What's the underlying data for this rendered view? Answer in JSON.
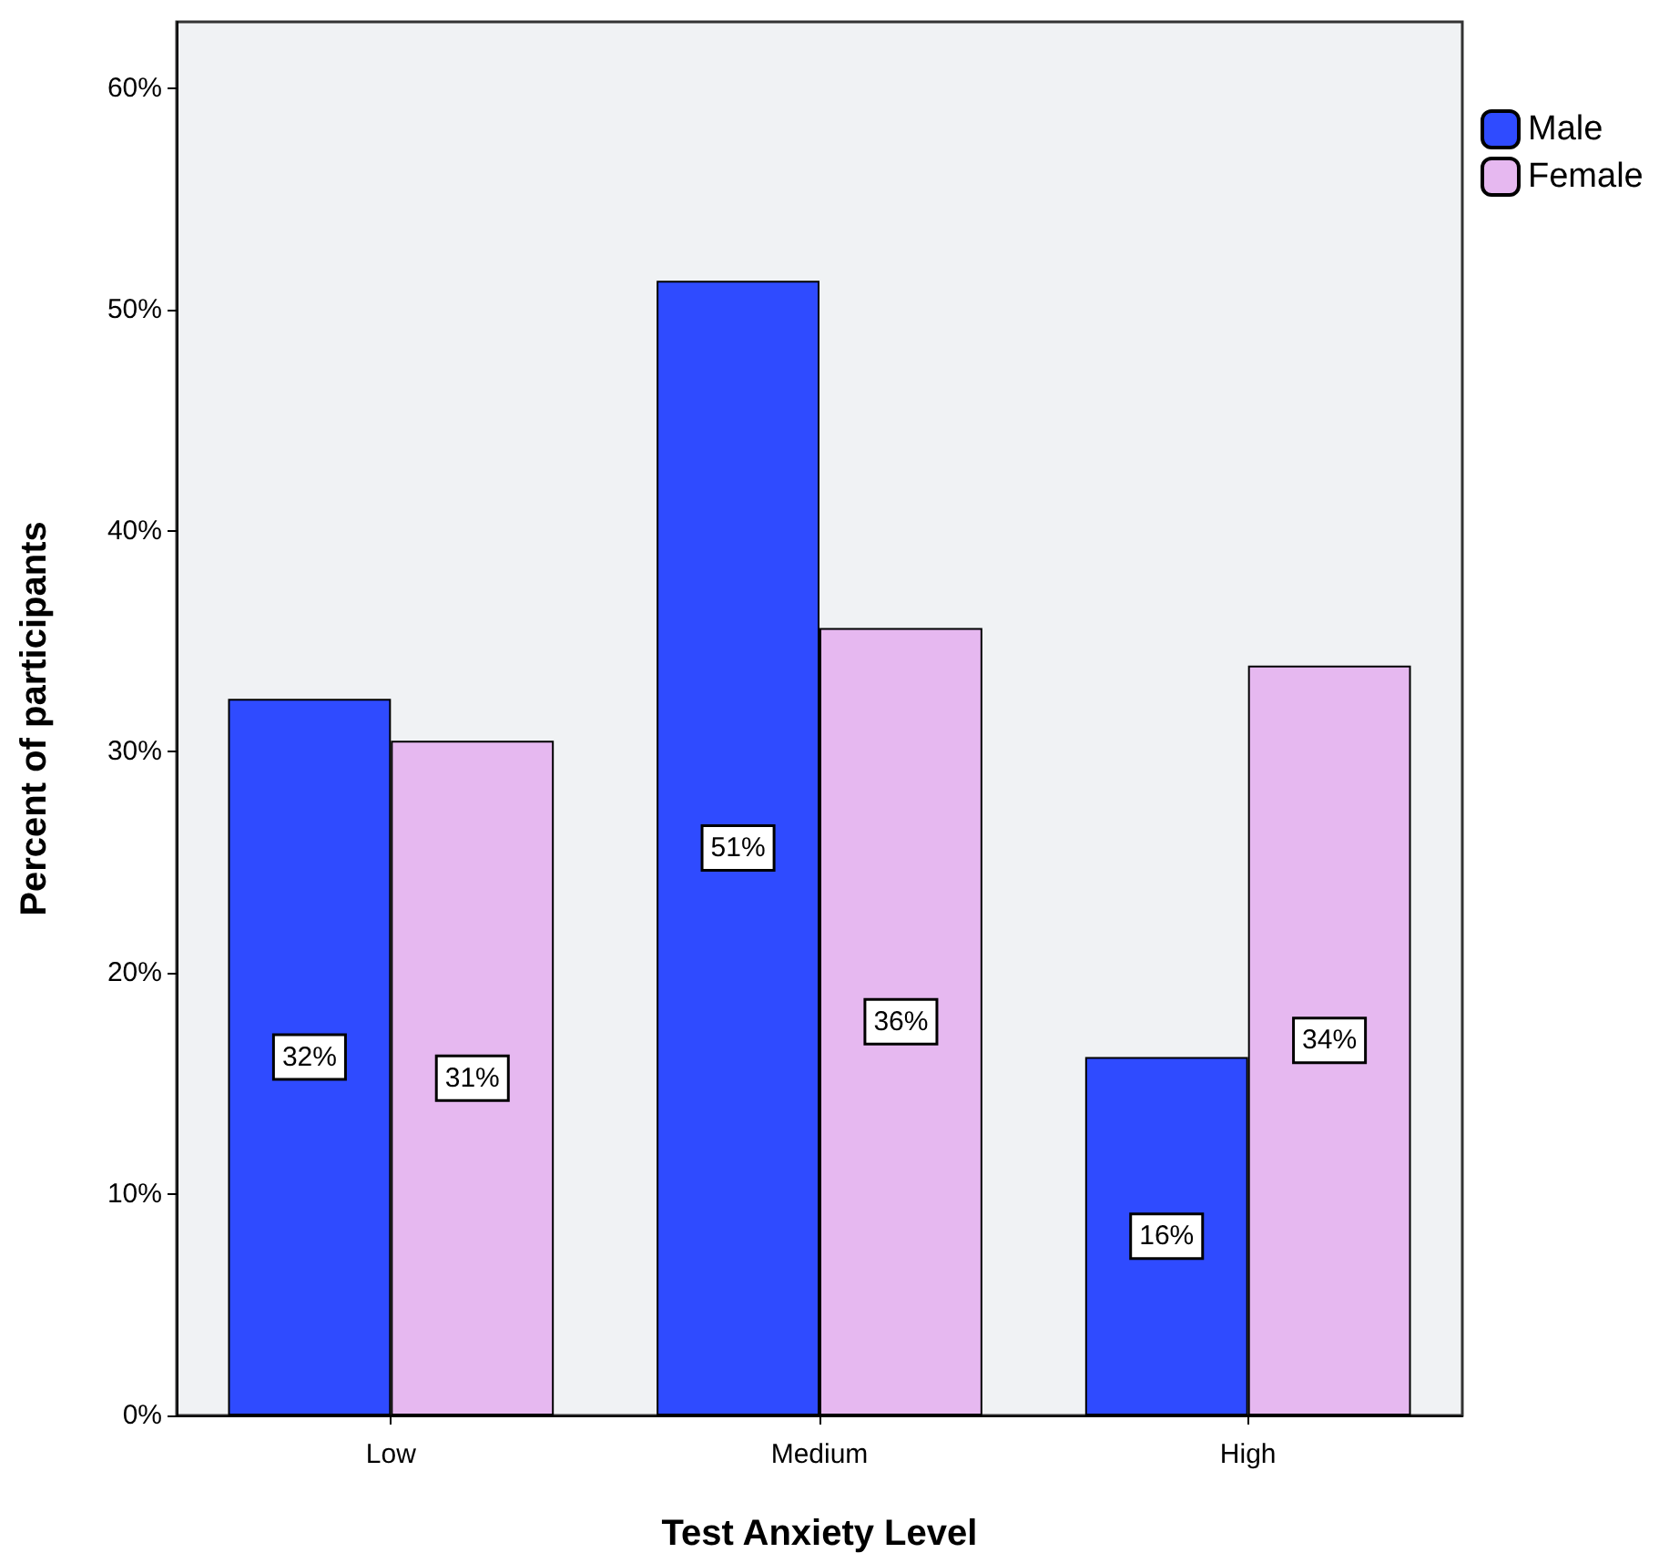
{
  "chart_data": {
    "type": "bar",
    "xlabel": "Test Anxiety Level",
    "ylabel": "Percent of participants",
    "categories": [
      "Low",
      "Medium",
      "High"
    ],
    "series": [
      {
        "name": "Male",
        "color": "#2f4bff",
        "values": [
          32.4,
          51.3,
          16.2
        ],
        "value_labels": [
          "32%",
          "51%",
          "16%"
        ]
      },
      {
        "name": "Female",
        "color": "#e6b8f0",
        "values": [
          30.5,
          35.6,
          33.9
        ],
        "value_labels": [
          "31%",
          "36%",
          "34%"
        ]
      }
    ],
    "ylim": [
      0,
      63
    ],
    "yticks": [
      {
        "value": 0,
        "label": "0%"
      },
      {
        "value": 10,
        "label": "10%"
      },
      {
        "value": 20,
        "label": "20%"
      },
      {
        "value": 30,
        "label": "30%"
      },
      {
        "value": 40,
        "label": "40%"
      },
      {
        "value": 50,
        "label": "50%"
      },
      {
        "value": 60,
        "label": "60%"
      }
    ],
    "grid": false,
    "legend": "top right"
  }
}
